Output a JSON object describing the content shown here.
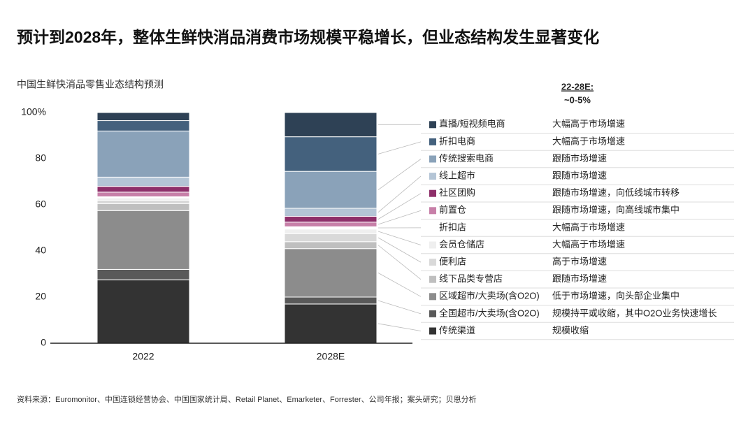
{
  "chart_data": {
    "type": "stacked_bar",
    "title": "预计到2028年，整体生鲜快消品消费市场规模平稳增长，但业态结构发生显著变化",
    "subtitle": "中国生鲜快消品零售业态结构预测",
    "growth_header": "22-28E:",
    "growth_value": "~0-5%",
    "source": "资料来源：Euromonitor、中国连锁经营协会、中国国家统计局、Retail Planet、Emarketer、Forrester、公司年报；案头研究；贝恩分析",
    "categories": [
      "2022",
      "2028E"
    ],
    "ylim": [
      0,
      100
    ],
    "yticks": [
      0,
      20,
      40,
      60,
      80,
      {
        "value": 100,
        "label": "100%"
      }
    ],
    "series": [
      {
        "name": "传统渠道",
        "color": "#333333",
        "values": [
          27.5,
          17
        ],
        "description": "规模收缩"
      },
      {
        "name": "全国超市/大卖场(含O2O)",
        "color": "#595959",
        "values": [
          4.5,
          3
        ],
        "description": "规模持平或收缩，其中O2O业务快速增长"
      },
      {
        "name": "区域超市/大卖场(含O2O)",
        "color": "#8c8c8c",
        "values": [
          25.5,
          21
        ],
        "description": "低于市场增速，向头部企业集中"
      },
      {
        "name": "线下品类专营店",
        "color": "#bfbfbf",
        "values": [
          3,
          3
        ],
        "description": "跟随市场增速"
      },
      {
        "name": "便利店",
        "color": "#d9d9d9",
        "values": [
          1.5,
          3.5
        ],
        "description": "高于市场增速"
      },
      {
        "name": "会员仓储店",
        "color": "#efefef",
        "values": [
          1,
          2
        ],
        "description": "大幅高于市场增速"
      },
      {
        "name": "折扣店",
        "color": "#ffffff",
        "values": [
          0.5,
          1
        ],
        "description": "大幅高于市场增速"
      },
      {
        "name": "前置仓",
        "color": "#c77fa8",
        "values": [
          2,
          2
        ],
        "description": "跟随市场增速，向高线城市集中"
      },
      {
        "name": "社区团购",
        "color": "#8e2f6a",
        "values": [
          2.5,
          2.5
        ],
        "description": "跟随市场增速，向低线城市转移"
      },
      {
        "name": "线上超市",
        "color": "#b4c5d6",
        "values": [
          4,
          3.5
        ],
        "description": "跟随市场增速"
      },
      {
        "name": "传统搜索电商",
        "color": "#8aa2b9",
        "values": [
          20,
          16
        ],
        "description": "跟随市场增速"
      },
      {
        "name": "折扣电商",
        "color": "#44617d",
        "values": [
          4.5,
          15
        ],
        "description": "大幅高于市场增速"
      },
      {
        "name": "直播/短视频电商",
        "color": "#2e4155",
        "values": [
          3.5,
          10.5
        ],
        "description": "大幅高于市场增速"
      }
    ]
  }
}
